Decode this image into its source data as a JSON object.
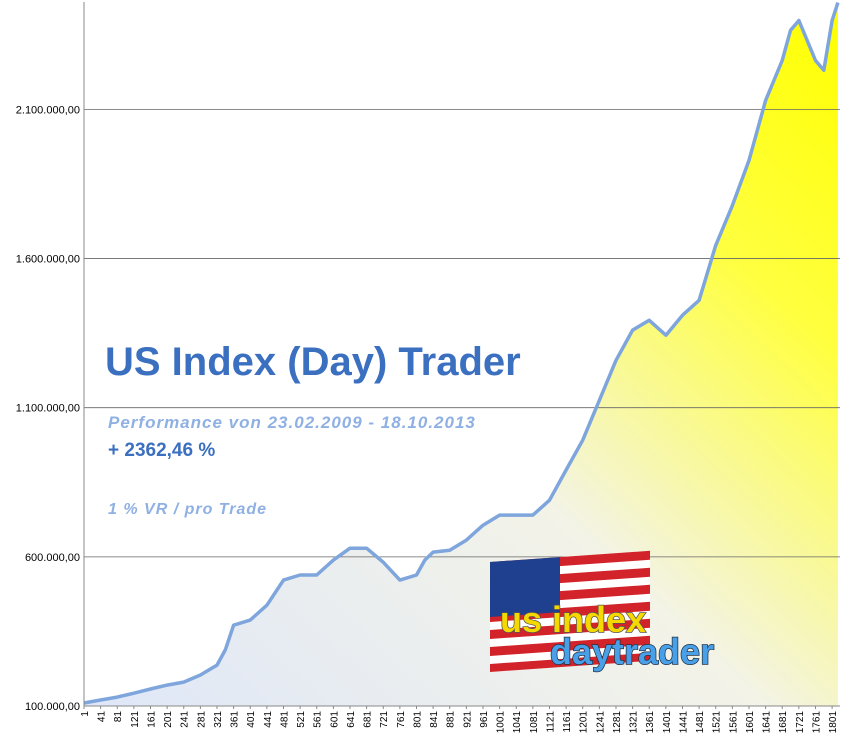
{
  "chart_data": {
    "type": "area",
    "title": "US Index (Day) Trader",
    "subtitle": "Performance  von  23.02.2009 - 18.10.2013",
    "annotations": [
      "+ 2362,46 %",
      "1 % VR / pro Trade"
    ],
    "logo": {
      "top": "us index",
      "bottom": "daytrader"
    },
    "x": [
      1,
      41,
      81,
      121,
      161,
      201,
      241,
      281,
      321,
      341,
      361,
      401,
      441,
      481,
      521,
      561,
      601,
      641,
      681,
      721,
      761,
      801,
      821,
      841,
      881,
      921,
      961,
      1001,
      1041,
      1081,
      1121,
      1161,
      1201,
      1241,
      1281,
      1321,
      1361,
      1401,
      1441,
      1481,
      1521,
      1561,
      1601,
      1641,
      1681,
      1701,
      1721,
      1761,
      1781,
      1801,
      1815
    ],
    "values": [
      110000,
      120000,
      130000,
      143000,
      157000,
      170000,
      180000,
      204000,
      237000,
      288000,
      371000,
      388000,
      438000,
      522000,
      539000,
      539000,
      589000,
      629000,
      629000,
      582000,
      522000,
      539000,
      589000,
      616000,
      622000,
      656000,
      706000,
      740000,
      740000,
      740000,
      790000,
      891000,
      991000,
      1125000,
      1259000,
      1360000,
      1393000,
      1343000,
      1410000,
      1460000,
      1644000,
      1778000,
      1929000,
      2130000,
      2264000,
      2365000,
      2398000,
      2264000,
      2231000,
      2398000,
      2458000
    ],
    "color": "#7ea6dc",
    "xlim": [
      1,
      1820
    ],
    "xticks": [
      1,
      41,
      81,
      121,
      161,
      201,
      241,
      281,
      321,
      361,
      401,
      441,
      481,
      521,
      561,
      601,
      641,
      681,
      721,
      761,
      801,
      841,
      881,
      921,
      961,
      1001,
      1041,
      1081,
      1121,
      1161,
      1201,
      1241,
      1281,
      1321,
      1361,
      1401,
      1441,
      1481,
      1521,
      1561,
      1601,
      1641,
      1681,
      1721,
      1761,
      1801
    ],
    "ylim": [
      100000,
      2460000
    ],
    "yticks": [
      {
        "value": 100000,
        "label": "100.000,00"
      },
      {
        "value": 600000,
        "label": "600.000,00"
      },
      {
        "value": 1100000,
        "label": "1.100.000,00"
      },
      {
        "value": 1600000,
        "label": "1.600.000,00"
      },
      {
        "value": 2100000,
        "label": "2.100.000,00"
      }
    ],
    "grid": true
  }
}
